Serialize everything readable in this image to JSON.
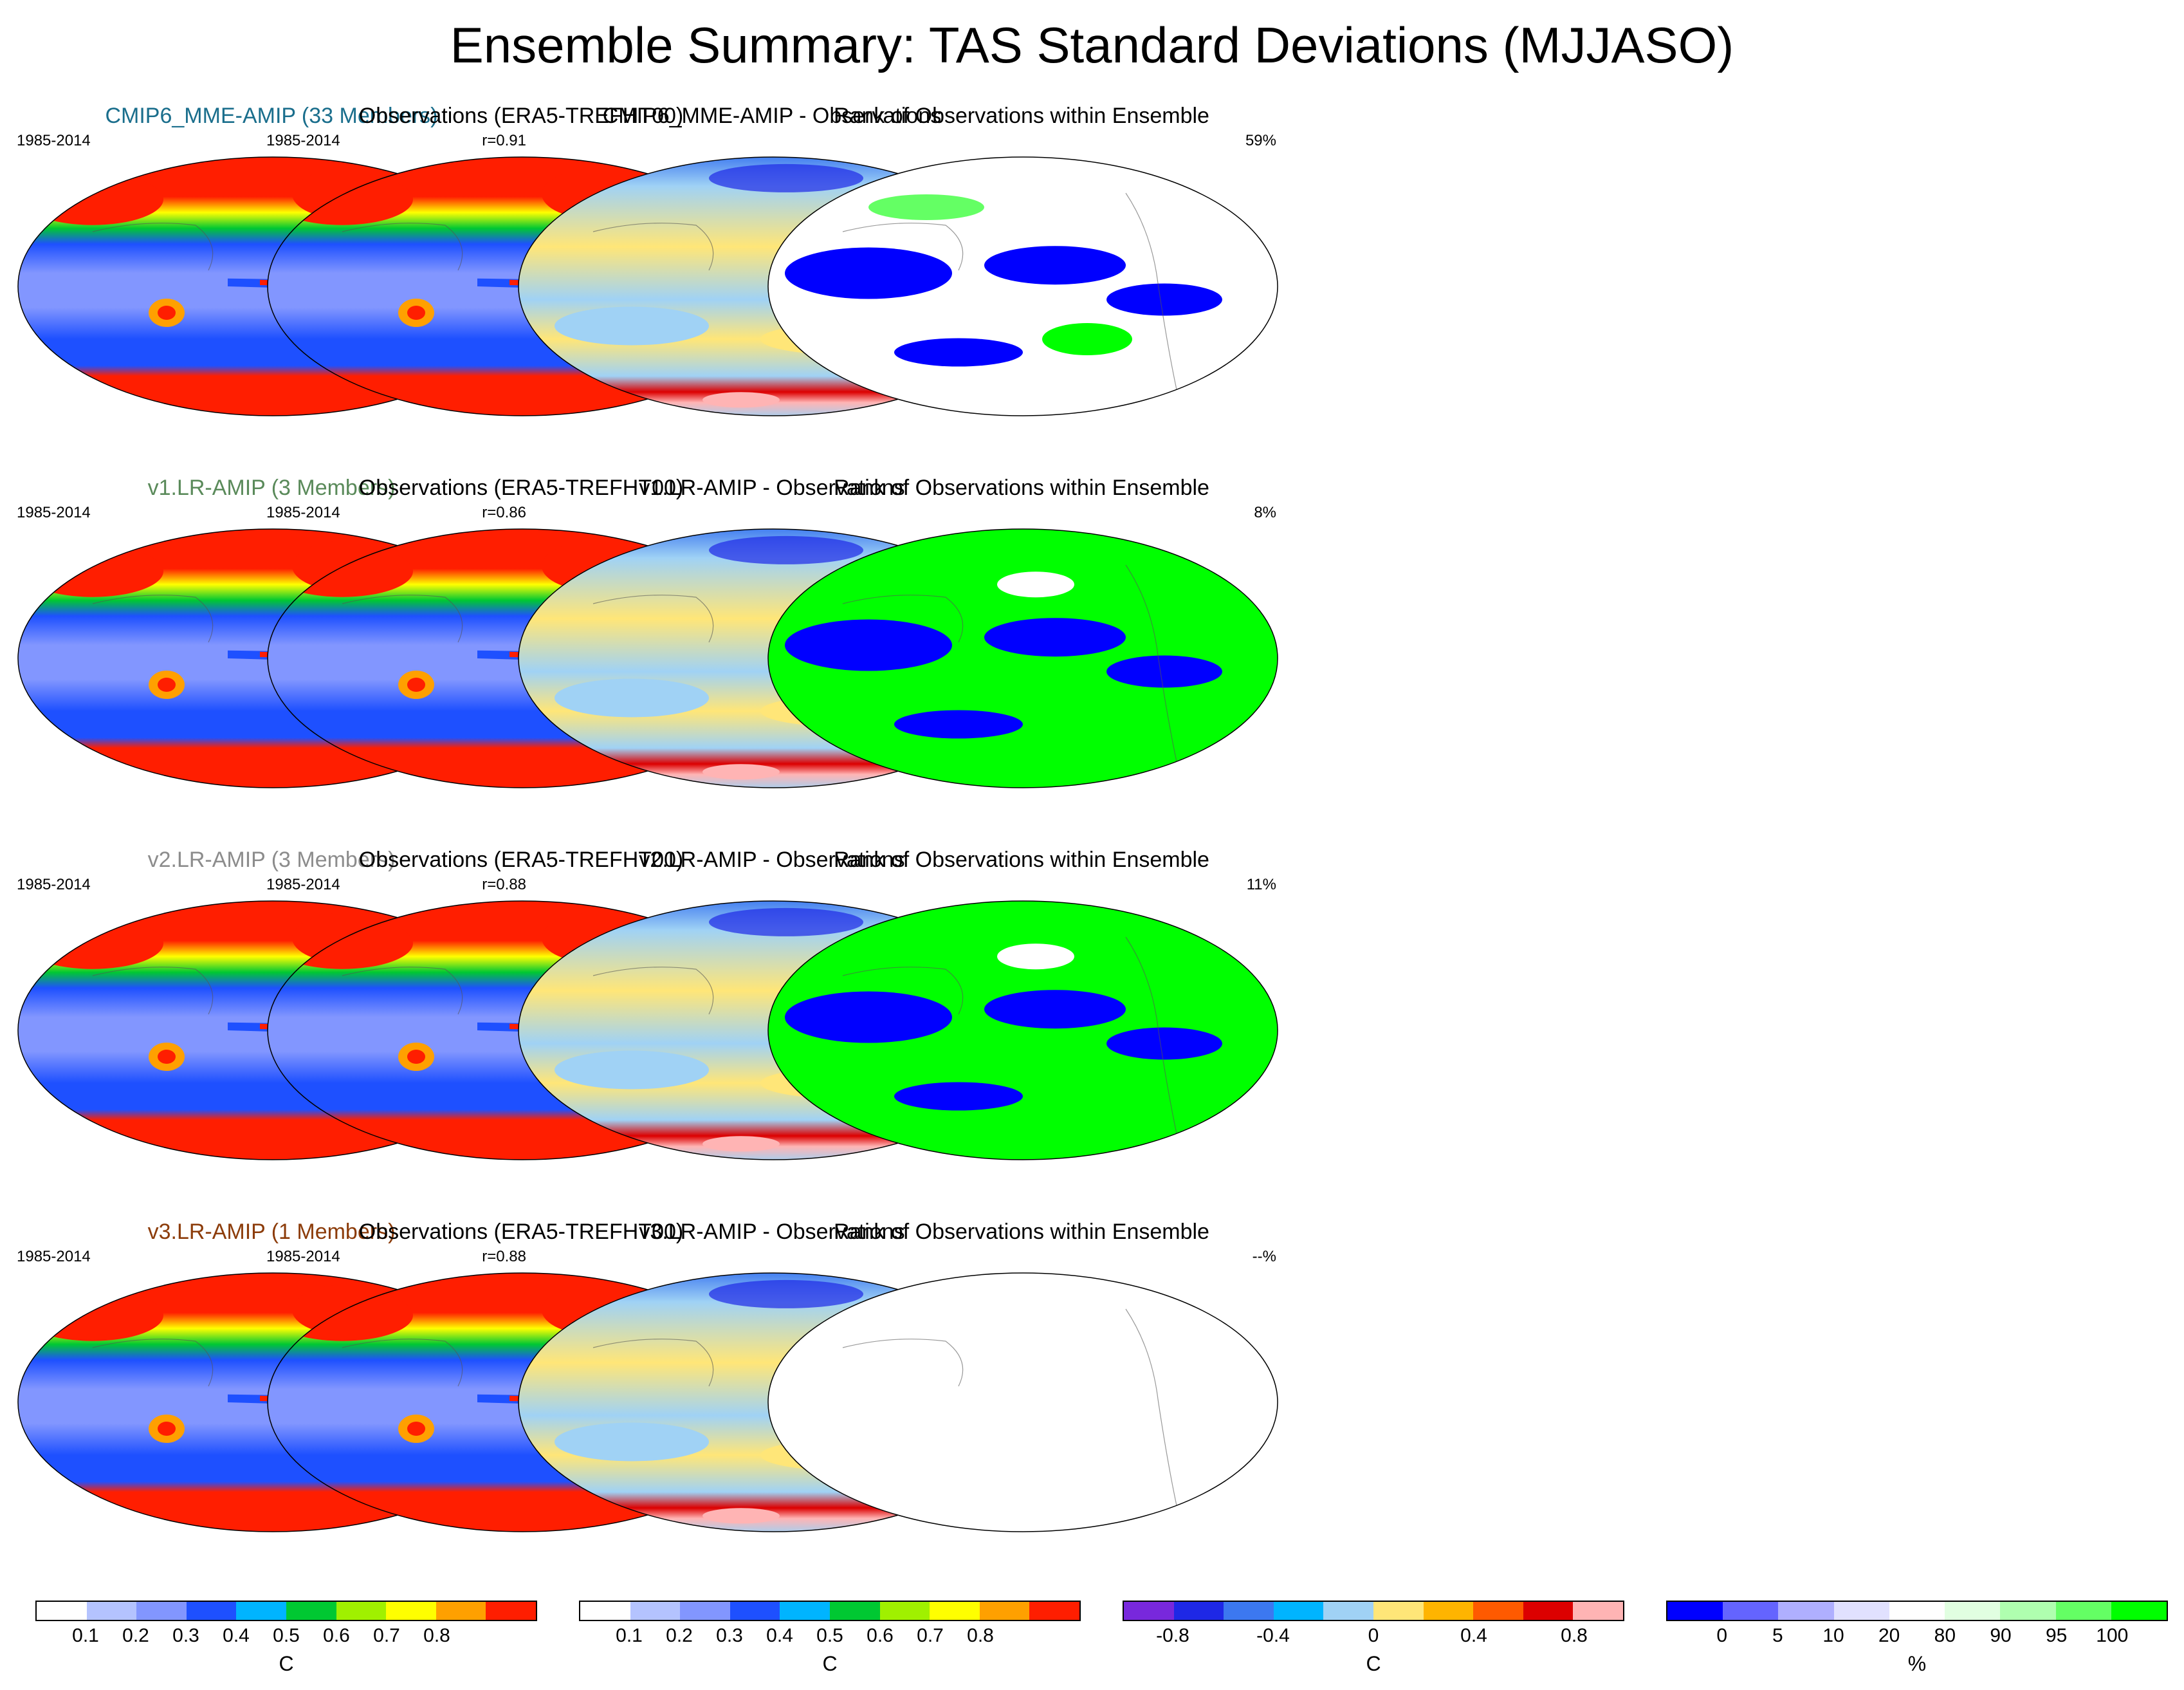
{
  "title": "Ensemble Summary: TAS Standard Deviations (MJJASO)",
  "colors": {
    "std_scale": [
      "#ffffff",
      "#b4c3ff",
      "#8296ff",
      "#1e50ff",
      "#00b4ff",
      "#00c832",
      "#a0f000",
      "#ffff00",
      "#ffa000",
      "#ff1e00"
    ],
    "diff_scale": [
      "#7828dc",
      "#1e28e6",
      "#3c78f0",
      "#00b4ff",
      "#a0d2f5",
      "#ffe678",
      "#ffb400",
      "#ff5a00",
      "#dc0000",
      "#ffb4b4"
    ],
    "rank_scale": [
      "#0000ff",
      "#6464ff",
      "#afafff",
      "#e1e1ff",
      "#ffffff",
      "#e1ffe1",
      "#afffaf",
      "#64ff64",
      "#00ff00"
    ]
  },
  "rows": [
    {
      "model": {
        "title": "CMIP6_MME-AMIP (33 Members)",
        "title_color": "#1a6e8c",
        "period": "1985-2014",
        "r": "r=0.91"
      },
      "obs": {
        "title": "Observations (ERA5-TREFHT00)",
        "period": "1985-2014"
      },
      "diff": {
        "title": "CMIP6_MME-AMIP - Observations"
      },
      "rank": {
        "title": "Rank of Observations within Ensemble",
        "pct": "59%"
      }
    },
    {
      "model": {
        "title": "v1.LR-AMIP (3 Members)",
        "title_color": "#5a8a5a",
        "period": "1985-2014",
        "r": "r=0.86"
      },
      "obs": {
        "title": "Observations (ERA5-TREFHT00)",
        "period": "1985-2014"
      },
      "diff": {
        "title": "v1.LR-AMIP - Observations"
      },
      "rank": {
        "title": "Rank of Observations within Ensemble",
        "pct": "8%"
      }
    },
    {
      "model": {
        "title": "v2.LR-AMIP (3 Members)",
        "title_color": "#8c8c8c",
        "period": "1985-2014",
        "r": "r=0.88"
      },
      "obs": {
        "title": "Observations (ERA5-TREFHT00)",
        "period": "1985-2014"
      },
      "diff": {
        "title": "v2.LR-AMIP - Observations"
      },
      "rank": {
        "title": "Rank of Observations within Ensemble",
        "pct": "11%"
      }
    },
    {
      "model": {
        "title": "v3.LR-AMIP (1 Members)",
        "title_color": "#8c3c0a",
        "period": "1985-2014",
        "r": "r=0.88"
      },
      "obs": {
        "title": "Observations (ERA5-TREFHT00)",
        "period": "1985-2014"
      },
      "diff": {
        "title": "v3.LR-AMIP - Observations"
      },
      "rank": {
        "title": "Rank of Observations within Ensemble",
        "pct": "--%"
      }
    }
  ],
  "colorbars": [
    {
      "labels": [
        "0.1",
        "0.2",
        "0.3",
        "0.4",
        "0.5",
        "0.6",
        "0.7",
        "0.8"
      ],
      "unit": "C"
    },
    {
      "labels": [
        "0.1",
        "0.2",
        "0.3",
        "0.4",
        "0.5",
        "0.6",
        "0.7",
        "0.8"
      ],
      "unit": "C"
    },
    {
      "labels": [
        "-0.8",
        "-0.4",
        "0",
        "0.4",
        "0.8"
      ],
      "unit": "C"
    },
    {
      "labels": [
        "0",
        "5",
        "10",
        "20",
        "80",
        "90",
        "95",
        "100"
      ],
      "unit": "%"
    }
  ]
}
